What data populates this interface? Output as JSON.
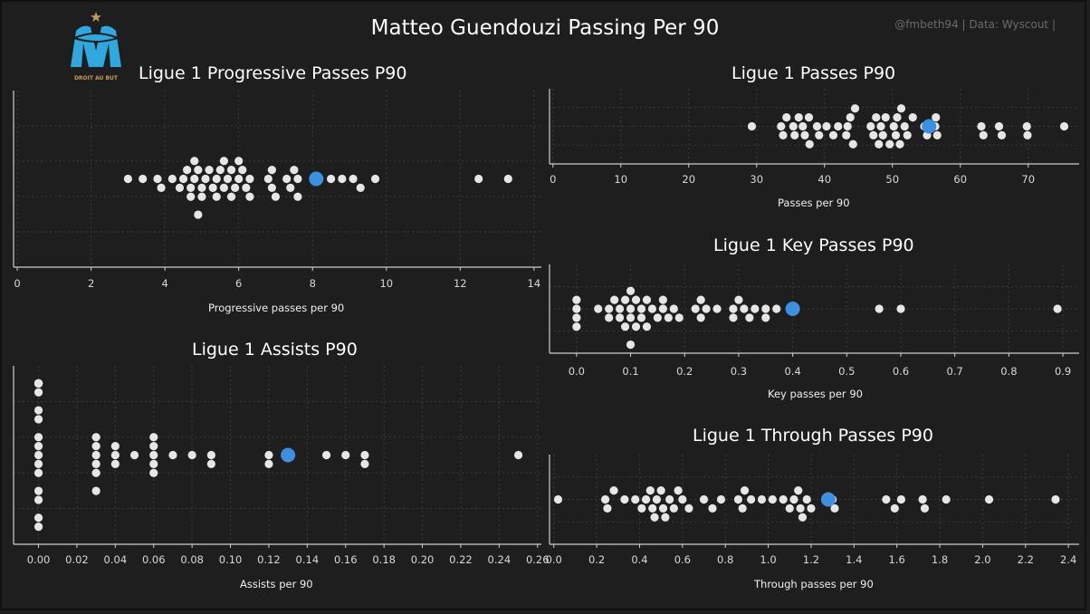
{
  "header": {
    "title": "Matteo Guendouzi Passing Per 90",
    "credit": "@fmbeth94 | Data: Wyscout |",
    "logo_text": "DROIT AU BUT"
  },
  "colors": {
    "background": "#1e1e1e",
    "point": "#e6e6e6",
    "highlight": "#3d8fe0",
    "axis": "#cfcfcf",
    "grid": "#3a3a3a",
    "logo": "#2fa8de"
  },
  "chart_data": [
    {
      "type": "scatter",
      "title": "Ligue 1 Progressive Passes P90",
      "xlabel": "Progressive passes per 90",
      "xlim": [
        -0.1,
        14.2
      ],
      "xticks": [
        0,
        2,
        4,
        6,
        8,
        10,
        12,
        14
      ],
      "grid": true,
      "highlight": {
        "name": "Matteo Guendouzi",
        "x": 8.1
      },
      "x": [
        3.0,
        3.4,
        3.8,
        3.9,
        4.2,
        4.4,
        4.5,
        4.6,
        4.7,
        4.7,
        4.8,
        4.8,
        4.9,
        4.9,
        5.0,
        5.0,
        5.1,
        5.2,
        5.3,
        5.4,
        5.4,
        5.5,
        5.6,
        5.6,
        5.7,
        5.8,
        5.8,
        5.9,
        6.0,
        6.0,
        6.1,
        6.2,
        6.3,
        6.3,
        6.8,
        6.9,
        6.9,
        7.0,
        7.3,
        7.4,
        7.5,
        7.6,
        7.6,
        8.5,
        8.8,
        9.1,
        9.3,
        9.7,
        12.5,
        13.3
      ]
    },
    {
      "type": "scatter",
      "title": "Ligue 1 Passes P90",
      "xlabel": "Passes per 90",
      "xlim": [
        -0.5,
        77.5
      ],
      "xticks": [
        0,
        10,
        20,
        30,
        40,
        50,
        60,
        70
      ],
      "grid": true,
      "highlight": {
        "name": "Matteo Guendouzi",
        "x": 55.4
      },
      "x": [
        29.3,
        33.6,
        33.9,
        34.4,
        35.4,
        35.6,
        36.2,
        36.8,
        37.1,
        37.7,
        37.8,
        38.9,
        39.2,
        40.3,
        41.3,
        42.0,
        43.2,
        43.4,
        43.8,
        44.2,
        44.5,
        46.8,
        47.2,
        47.6,
        48.0,
        48.3,
        48.6,
        49.0,
        49.6,
        50.2,
        50.5,
        50.7,
        51.1,
        51.3,
        51.8,
        52.2,
        53.0,
        54.7,
        55.1,
        56.3,
        56.4,
        56.6,
        63.1,
        63.4,
        65.7,
        66.1,
        69.8,
        69.9,
        75.3
      ]
    },
    {
      "type": "scatter",
      "title": "Ligue 1 Key Passes P90",
      "xlabel": "Key passes per 90",
      "xlim": [
        -0.05,
        0.93
      ],
      "xticks": [
        0.0,
        0.1,
        0.2,
        0.3,
        0.4,
        0.5,
        0.6,
        0.7,
        0.8,
        0.9
      ],
      "grid": true,
      "highlight": {
        "name": "Matteo Guendouzi",
        "x": 0.4
      },
      "x": [
        0.0,
        0.0,
        0.0,
        0.0,
        0.04,
        0.06,
        0.06,
        0.07,
        0.08,
        0.08,
        0.09,
        0.09,
        0.1,
        0.1,
        0.1,
        0.1,
        0.11,
        0.11,
        0.12,
        0.12,
        0.13,
        0.13,
        0.14,
        0.15,
        0.16,
        0.16,
        0.17,
        0.18,
        0.19,
        0.22,
        0.23,
        0.23,
        0.24,
        0.26,
        0.29,
        0.29,
        0.3,
        0.31,
        0.32,
        0.33,
        0.35,
        0.35,
        0.37,
        0.56,
        0.6,
        0.89
      ]
    },
    {
      "type": "scatter",
      "title": "Ligue 1 Assists P90",
      "xlabel": "Assists per 90",
      "xlim": [
        -0.013,
        0.262
      ],
      "xticks": [
        0.0,
        0.02,
        0.04,
        0.06,
        0.08,
        0.1,
        0.12,
        0.14,
        0.16,
        0.18,
        0.2,
        0.22,
        0.24,
        0.26
      ],
      "xtick_labels": [
        "0.00",
        "0.02",
        "0.04",
        "0.06",
        "0.08",
        "0.10",
        "0.12",
        "0.14",
        "0.16",
        "0.18",
        "0.20",
        "0.22",
        "0.24",
        "0.26"
      ],
      "grid": true,
      "highlight": {
        "name": "Matteo Guendouzi",
        "x": 0.13
      },
      "x": [
        0,
        0,
        0,
        0,
        0,
        0,
        0,
        0,
        0,
        0,
        0,
        0,
        0,
        0,
        0,
        0,
        0,
        0,
        0,
        0,
        0,
        0,
        0,
        0.03,
        0.03,
        0.03,
        0.03,
        0.03,
        0.03,
        0.04,
        0.04,
        0.04,
        0.05,
        0.06,
        0.06,
        0.06,
        0.06,
        0.06,
        0.07,
        0.08,
        0.09,
        0.09,
        0.12,
        0.12,
        0.15,
        0.16,
        0.17,
        0.17,
        0.25
      ]
    },
    {
      "type": "scatter",
      "title": "Ligue 1 Through Passes P90",
      "xlabel": "Through passes per 90",
      "xlim": [
        -0.02,
        2.45
      ],
      "xticks": [
        0.0,
        0.2,
        0.4,
        0.6,
        0.8,
        1.0,
        1.2,
        1.4,
        1.6,
        1.8,
        2.0,
        2.2,
        2.4
      ],
      "grid": true,
      "highlight": {
        "name": "Matteo Guendouzi",
        "x": 1.28
      },
      "x": [
        0.02,
        0.24,
        0.25,
        0.28,
        0.33,
        0.38,
        0.41,
        0.43,
        0.45,
        0.46,
        0.47,
        0.48,
        0.5,
        0.51,
        0.52,
        0.54,
        0.56,
        0.58,
        0.6,
        0.63,
        0.7,
        0.74,
        0.78,
        0.86,
        0.88,
        0.89,
        0.92,
        0.97,
        1.02,
        1.07,
        1.1,
        1.12,
        1.14,
        1.15,
        1.16,
        1.18,
        1.2,
        1.3,
        1.31,
        1.55,
        1.59,
        1.62,
        1.72,
        1.73,
        1.83,
        2.03,
        2.34
      ]
    }
  ]
}
